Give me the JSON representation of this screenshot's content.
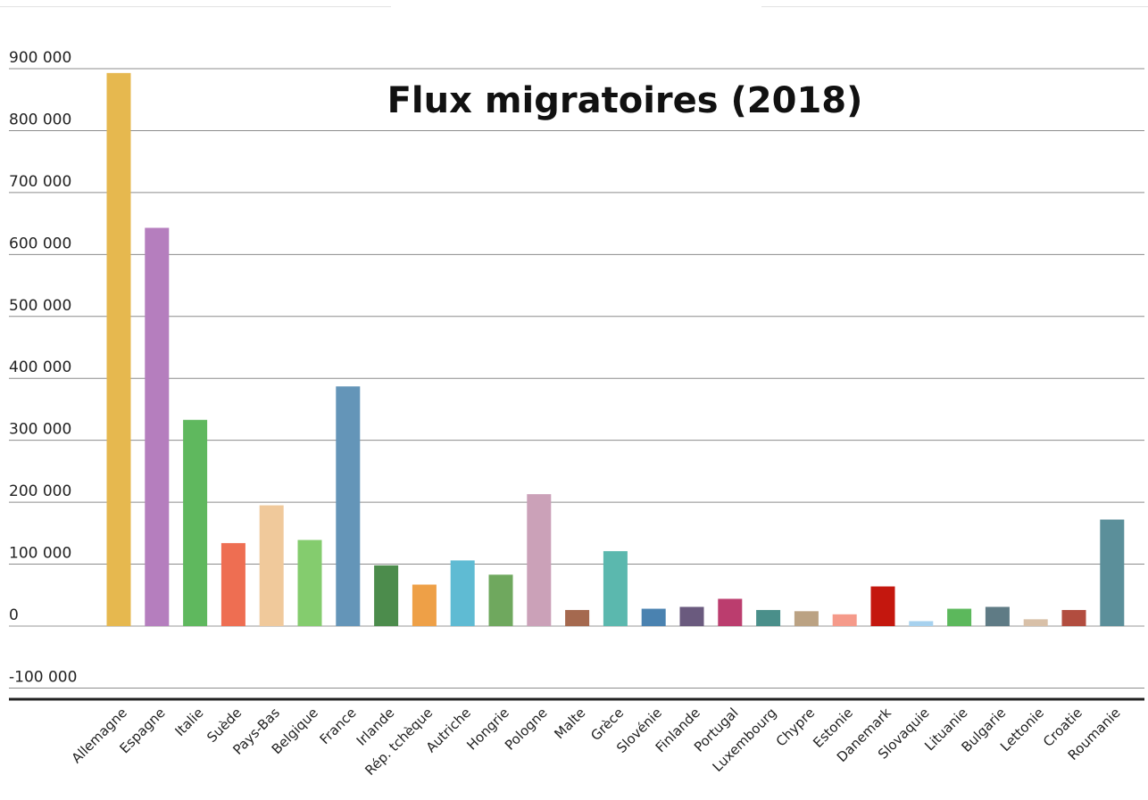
{
  "chart_data": {
    "type": "bar",
    "title": "Flux migratoires (2018)",
    "xlabel": "",
    "ylabel": "",
    "ylim": [
      -100000,
      900000
    ],
    "yticks": [
      900000,
      800000,
      700000,
      600000,
      500000,
      400000,
      300000,
      200000,
      100000,
      0,
      -100000
    ],
    "ytick_labels": [
      "900 000",
      "800 000",
      "700 000",
      "600 000",
      "500 000",
      "400 000",
      "300 000",
      "200 000",
      "100 000",
      "0",
      "-100 000"
    ],
    "grid": true,
    "legend": "none",
    "categories": [
      "Allemagne",
      "Espagne",
      "Italie",
      "Suède",
      "Pays-Bas",
      "Belgique",
      "France",
      "Irlande",
      "Rép. tchèque",
      "Autriche",
      "Hongrie",
      "Pologne",
      "Malte",
      "Grèce",
      "Slovénie",
      "Finlande",
      "Portugal",
      "Luxembourg",
      "Chypre",
      "Estonie",
      "Danemark",
      "Slovaquie",
      "Lituanie",
      "Bulgarie",
      "Lettonie",
      "Croatie",
      "Roumanie"
    ],
    "values": [
      893000,
      643000,
      333000,
      134000,
      195000,
      139000,
      387000,
      98000,
      67000,
      106000,
      83000,
      213000,
      26000,
      121000,
      28000,
      31000,
      44000,
      26000,
      24000,
      19000,
      64000,
      8000,
      28000,
      31000,
      11000,
      26000,
      172000
    ],
    "colors": [
      "#e6b84f",
      "#b57ebe",
      "#5fb85e",
      "#ee6e52",
      "#f0c99b",
      "#84cc6e",
      "#6495b8",
      "#4c8c4c",
      "#eea047",
      "#5fbbd3",
      "#6fa85e",
      "#cba1b8",
      "#a5694f",
      "#5bb8ae",
      "#4a82b0",
      "#6a5a7e",
      "#bb3d6e",
      "#4a8f8a",
      "#bba283",
      "#f59a8a",
      "#c4170e",
      "#a6d1ee",
      "#5cb85c",
      "#5f7b85",
      "#d8c0a8",
      "#b24d3f",
      "#5b8f9a"
    ]
  }
}
